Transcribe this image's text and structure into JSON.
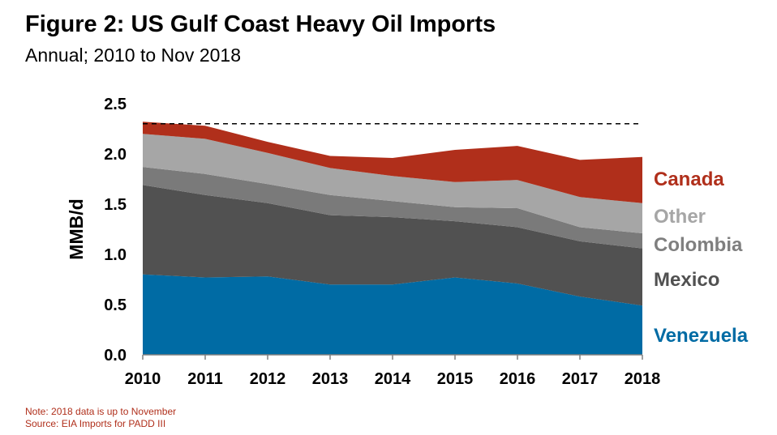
{
  "title": "Figure 2: US Gulf Coast Heavy Oil Imports",
  "subtitle": "Annual; 2010 to Nov 2018",
  "notes": {
    "note": "Note: 2018 data is up to November",
    "source": "Source: EIA Imports for PADD III"
  },
  "chart_data": {
    "type": "area",
    "stacked": true,
    "x": [
      2010,
      2011,
      2012,
      2013,
      2014,
      2015,
      2016,
      2017,
      2018
    ],
    "x_tick_labels": [
      "2010",
      "2011",
      "2012",
      "2013",
      "2014",
      "2015",
      "2016",
      "2017",
      "2018"
    ],
    "ylabel": "MMB/d",
    "ylim": [
      0,
      2.5
    ],
    "y_ticks": [
      "0.0",
      "0.5",
      "1.0",
      "1.5",
      "2.0",
      "2.5"
    ],
    "grid": false,
    "legend": "right",
    "reference_line": {
      "y": 2.3,
      "style": "dashed"
    },
    "series": [
      {
        "name": "Venezuela",
        "color": "#006ba4",
        "values": [
          0.8,
          0.77,
          0.78,
          0.7,
          0.7,
          0.77,
          0.71,
          0.58,
          0.49
        ]
      },
      {
        "name": "Mexico",
        "color": "#515151",
        "values": [
          0.89,
          0.82,
          0.73,
          0.69,
          0.67,
          0.56,
          0.56,
          0.55,
          0.57
        ]
      },
      {
        "name": "Colombia",
        "color": "#7a7a7a",
        "values": [
          0.18,
          0.21,
          0.19,
          0.2,
          0.16,
          0.14,
          0.19,
          0.14,
          0.15
        ]
      },
      {
        "name": "Other",
        "color": "#a6a6a6",
        "values": [
          0.33,
          0.35,
          0.31,
          0.27,
          0.25,
          0.25,
          0.28,
          0.3,
          0.3
        ]
      },
      {
        "name": "Canada",
        "color": "#b02f1b",
        "values": [
          0.12,
          0.13,
          0.11,
          0.12,
          0.18,
          0.32,
          0.34,
          0.37,
          0.46
        ]
      }
    ]
  }
}
